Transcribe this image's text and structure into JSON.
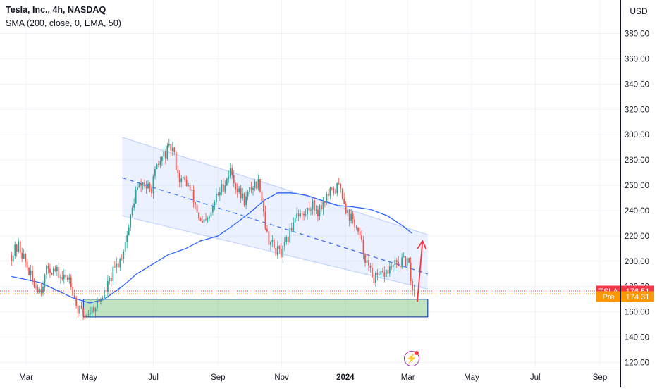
{
  "header": {
    "title": "Tesla, Inc., 4h, NASDAQ",
    "indicator": "SMA (200, close, 0, EMA, 50)"
  },
  "axis": {
    "currency": "USD"
  },
  "badges": {
    "last": {
      "label": "TSLA",
      "value": "176.51",
      "color": "#f23645"
    },
    "pre": {
      "label": "Pre",
      "value": "174.31",
      "color": "#ff9800"
    }
  },
  "colors": {
    "up": "#26a69a",
    "down": "#ef5350",
    "sma": "#2962ff",
    "channel": "#2962ff",
    "zone": "#4caf50",
    "arrow": "#f23645"
  },
  "icons": {
    "lightning": "lightning-icon"
  },
  "chart_data": {
    "type": "candlestick",
    "title": "Tesla, Inc., 4h, NASDAQ",
    "ylim": [
      115,
      395
    ],
    "y_ticks": [
      120,
      140,
      160,
      180,
      200,
      220,
      240,
      260,
      280,
      300,
      320,
      340,
      360,
      380
    ],
    "y_tick_labels": [
      "120.00",
      "140.00",
      "160.00",
      "180.00",
      "200.00",
      "220.00",
      "240.00",
      "260.00",
      "280.00",
      "300.00",
      "320.00",
      "340.00",
      "360.00",
      "380.00"
    ],
    "x_range": [
      "2023-02-15",
      "2024-09-30"
    ],
    "x_ticks": [
      {
        "date": "2023-03-01",
        "label": "Mar"
      },
      {
        "date": "2023-05-01",
        "label": "May"
      },
      {
        "date": "2023-07-01",
        "label": "Jul"
      },
      {
        "date": "2023-09-01",
        "label": "Sep"
      },
      {
        "date": "2023-11-01",
        "label": "Nov"
      },
      {
        "date": "2024-01-01",
        "label": "2024"
      },
      {
        "date": "2024-03-01",
        "label": "Mar"
      },
      {
        "date": "2024-05-01",
        "label": "May"
      },
      {
        "date": "2024-07-01",
        "label": "Jul"
      },
      {
        "date": "2024-09-01",
        "label": "Sep"
      }
    ],
    "price_path": [
      [
        "2023-02-15",
        205
      ],
      [
        "2023-02-22",
        212
      ],
      [
        "2023-03-01",
        198
      ],
      [
        "2023-03-08",
        182
      ],
      [
        "2023-03-15",
        178
      ],
      [
        "2023-03-22",
        195
      ],
      [
        "2023-03-29",
        192
      ],
      [
        "2023-04-05",
        186
      ],
      [
        "2023-04-12",
        188
      ],
      [
        "2023-04-19",
        162
      ],
      [
        "2023-04-26",
        158
      ],
      [
        "2023-05-03",
        162
      ],
      [
        "2023-05-10",
        168
      ],
      [
        "2023-05-17",
        178
      ],
      [
        "2023-05-24",
        192
      ],
      [
        "2023-05-31",
        203
      ],
      [
        "2023-06-07",
        225
      ],
      [
        "2023-06-14",
        255
      ],
      [
        "2023-06-21",
        262
      ],
      [
        "2023-06-28",
        255
      ],
      [
        "2023-07-05",
        275
      ],
      [
        "2023-07-12",
        285
      ],
      [
        "2023-07-19",
        290
      ],
      [
        "2023-07-26",
        265
      ],
      [
        "2023-08-02",
        262
      ],
      [
        "2023-08-09",
        248
      ],
      [
        "2023-08-16",
        228
      ],
      [
        "2023-08-23",
        232
      ],
      [
        "2023-08-30",
        250
      ],
      [
        "2023-09-06",
        260
      ],
      [
        "2023-09-13",
        272
      ],
      [
        "2023-09-20",
        255
      ],
      [
        "2023-09-27",
        248
      ],
      [
        "2023-10-04",
        260
      ],
      [
        "2023-10-11",
        262
      ],
      [
        "2023-10-18",
        220
      ],
      [
        "2023-10-25",
        210
      ],
      [
        "2023-11-01",
        205
      ],
      [
        "2023-11-08",
        220
      ],
      [
        "2023-11-15",
        240
      ],
      [
        "2023-11-22",
        235
      ],
      [
        "2023-11-29",
        245
      ],
      [
        "2023-12-06",
        240
      ],
      [
        "2023-12-13",
        250
      ],
      [
        "2023-12-20",
        255
      ],
      [
        "2023-12-27",
        260
      ],
      [
        "2024-01-03",
        238
      ],
      [
        "2024-01-10",
        230
      ],
      [
        "2024-01-17",
        212
      ],
      [
        "2024-01-24",
        192
      ],
      [
        "2024-01-31",
        185
      ],
      [
        "2024-02-07",
        190
      ],
      [
        "2024-02-14",
        195
      ],
      [
        "2024-02-21",
        198
      ],
      [
        "2024-02-28",
        200
      ],
      [
        "2024-03-02",
        195
      ],
      [
        "2024-03-05",
        180
      ],
      [
        "2024-03-07",
        176.5
      ]
    ],
    "sma_path": [
      [
        "2023-02-15",
        188
      ],
      [
        "2023-03-15",
        183
      ],
      [
        "2023-04-15",
        171
      ],
      [
        "2023-05-01",
        167
      ],
      [
        "2023-05-15",
        170
      ],
      [
        "2023-06-01",
        180
      ],
      [
        "2023-06-15",
        190
      ],
      [
        "2023-07-01",
        198
      ],
      [
        "2023-07-15",
        205
      ],
      [
        "2023-08-01",
        210
      ],
      [
        "2023-08-15",
        216
      ],
      [
        "2023-09-01",
        220
      ],
      [
        "2023-09-15",
        228
      ],
      [
        "2023-10-01",
        238
      ],
      [
        "2023-10-15",
        248
      ],
      [
        "2023-10-28",
        254
      ],
      [
        "2023-11-10",
        254
      ],
      [
        "2023-11-25",
        252
      ],
      [
        "2023-12-10",
        248
      ],
      [
        "2023-12-25",
        244
      ],
      [
        "2024-01-08",
        243
      ],
      [
        "2024-01-25",
        241
      ],
      [
        "2024-02-10",
        236
      ],
      [
        "2024-02-25",
        228
      ],
      [
        "2024-03-05",
        222
      ]
    ],
    "last_price": 176.51,
    "pre_price": 174.31,
    "annotations": {
      "channel": {
        "upper": [
          [
            "2023-06-01",
            298
          ],
          [
            "2024-03-20",
            221
          ]
        ],
        "mid": [
          [
            "2023-06-01",
            266
          ],
          [
            "2024-03-20",
            190
          ]
        ],
        "lower": [
          [
            "2023-06-01",
            236
          ],
          [
            "2024-03-20",
            178
          ]
        ]
      },
      "support_zone": {
        "x": [
          "2023-04-25",
          "2024-03-20"
        ],
        "y": [
          156,
          170
        ]
      },
      "arrow": {
        "from": [
          "2024-03-10",
          168
        ],
        "to": [
          "2024-03-15",
          216
        ]
      }
    }
  }
}
